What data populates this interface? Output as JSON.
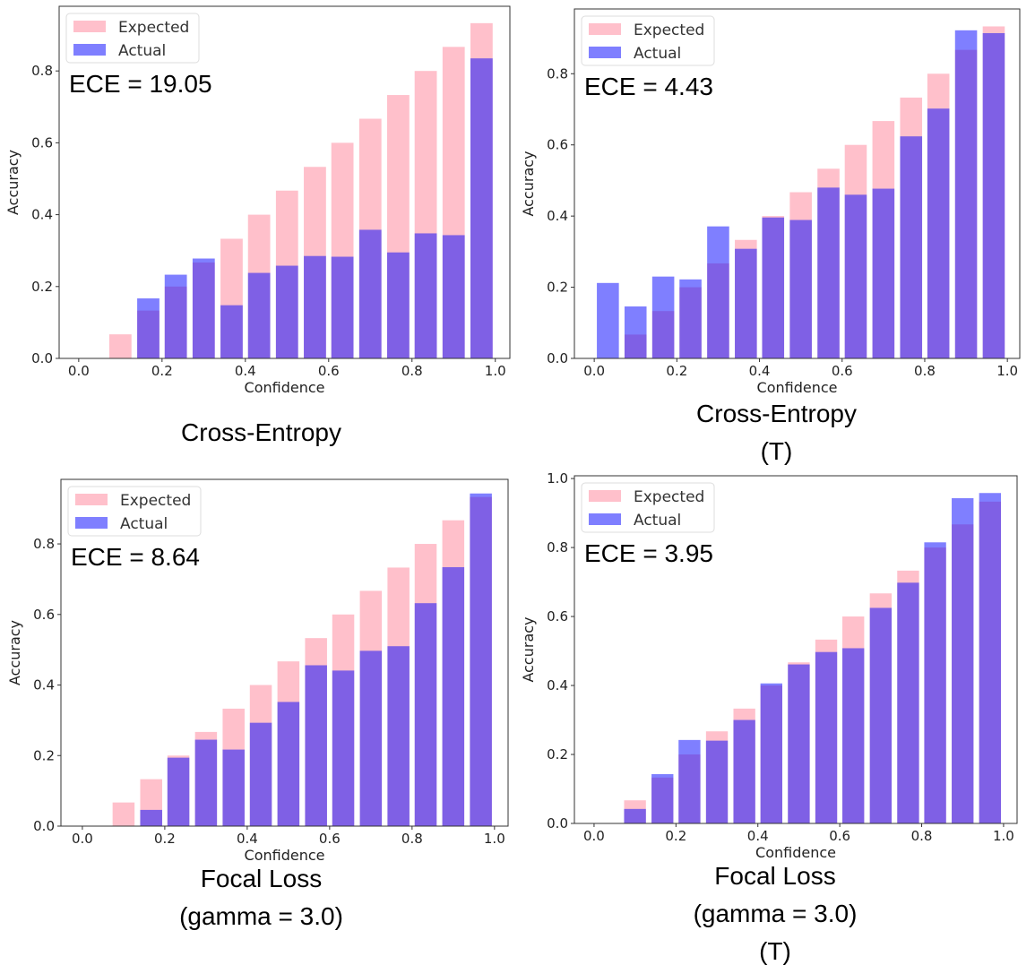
{
  "colors": {
    "expected": "#ffc0cb",
    "actual": "#0000ff",
    "actual_alpha": 0.5
  },
  "chart_data": [
    {
      "type": "bar",
      "caption": [
        "Cross-Entropy"
      ],
      "ece_label": "ECE = 19.05",
      "xlabel": "Confidence",
      "ylabel": "Accuracy",
      "legend": [
        "Expected",
        "Actual"
      ],
      "legend_placement": "top-left",
      "xlim": [
        -0.047,
        1.035
      ],
      "ylim": [
        0,
        0.98
      ],
      "xticks": [
        "0.0",
        "0.2",
        "0.4",
        "0.6",
        "0.8",
        "1.0"
      ],
      "yticks": [
        "0.0",
        "0.2",
        "0.4",
        "0.6",
        "0.8"
      ],
      "bin_centers": [
        0.033,
        0.1,
        0.167,
        0.233,
        0.3,
        0.367,
        0.433,
        0.5,
        0.567,
        0.633,
        0.7,
        0.767,
        0.833,
        0.9,
        0.967
      ],
      "series": [
        {
          "name": "Expected",
          "values": [
            0,
            0.067,
            0.133,
            0.2,
            0.267,
            0.333,
            0.4,
            0.467,
            0.533,
            0.6,
            0.667,
            0.733,
            0.8,
            0.867,
            0.933
          ]
        },
        {
          "name": "Actual",
          "values": [
            0,
            0,
            0.167,
            0.233,
            0.278,
            0.148,
            0.238,
            0.258,
            0.285,
            0.283,
            0.358,
            0.295,
            0.348,
            0.343,
            0.835
          ]
        }
      ]
    },
    {
      "type": "bar",
      "caption": [
        "Cross-Entropy",
        "(T)"
      ],
      "ece_label": "ECE = 4.43",
      "xlabel": "Confidence",
      "ylabel": "Accuracy",
      "legend": [
        "Expected",
        "Actual"
      ],
      "legend_placement": "top-left",
      "xlim": [
        -0.048,
        1.03
      ],
      "ylim": [
        0,
        0.982
      ],
      "xticks": [
        "0.0",
        "0.2",
        "0.4",
        "0.6",
        "0.8",
        "1.0"
      ],
      "yticks": [
        "0.0",
        "0.2",
        "0.4",
        "0.6",
        "0.8"
      ],
      "bin_centers": [
        0.033,
        0.1,
        0.167,
        0.233,
        0.3,
        0.367,
        0.433,
        0.5,
        0.567,
        0.633,
        0.7,
        0.767,
        0.833,
        0.9,
        0.967
      ],
      "series": [
        {
          "name": "Expected",
          "values": [
            0,
            0.067,
            0.133,
            0.2,
            0.267,
            0.333,
            0.4,
            0.467,
            0.533,
            0.6,
            0.667,
            0.733,
            0.8,
            0.867,
            0.933
          ]
        },
        {
          "name": "Actual",
          "values": [
            0.212,
            0.146,
            0.23,
            0.222,
            0.371,
            0.308,
            0.396,
            0.389,
            0.48,
            0.46,
            0.477,
            0.624,
            0.702,
            0.922,
            0.914
          ]
        }
      ]
    },
    {
      "type": "bar",
      "caption": [
        "Focal Loss",
        "(gamma = 3.0)"
      ],
      "ece_label": "ECE = 8.64",
      "xlabel": "Confidence",
      "ylabel": "Accuracy",
      "legend": [
        "Expected",
        "Actual"
      ],
      "legend_placement": "top-left",
      "xlim": [
        -0.052,
        1.033
      ],
      "ylim": [
        0,
        0.983
      ],
      "xticks": [
        "0.0",
        "0.2",
        "0.4",
        "0.6",
        "0.8",
        "1.0"
      ],
      "yticks": [
        "0.0",
        "0.2",
        "0.4",
        "0.6",
        "0.8"
      ],
      "bin_centers": [
        0.033,
        0.1,
        0.167,
        0.233,
        0.3,
        0.367,
        0.433,
        0.5,
        0.567,
        0.633,
        0.7,
        0.767,
        0.833,
        0.9,
        0.967
      ],
      "series": [
        {
          "name": "Expected",
          "values": [
            0,
            0.067,
            0.133,
            0.2,
            0.267,
            0.333,
            0.4,
            0.467,
            0.533,
            0.6,
            0.667,
            0.733,
            0.8,
            0.867,
            0.933
          ]
        },
        {
          "name": "Actual",
          "values": [
            0,
            0,
            0.046,
            0.194,
            0.245,
            0.217,
            0.293,
            0.352,
            0.456,
            0.441,
            0.497,
            0.51,
            0.632,
            0.734,
            0.943
          ]
        }
      ]
    },
    {
      "type": "bar",
      "caption": [
        "Focal Loss",
        "(gamma = 3.0)",
        "(T)"
      ],
      "ece_label": "ECE = 3.95",
      "xlabel": "Confidence",
      "ylabel": "Accuracy",
      "legend": [
        "Expected",
        "Actual"
      ],
      "legend_placement": "top-left",
      "xlim": [
        -0.048,
        1.033
      ],
      "ylim": [
        0,
        1.008
      ],
      "xticks": [
        "0.0",
        "0.2",
        "0.4",
        "0.6",
        "0.8",
        "1.0"
      ],
      "yticks": [
        "0.0",
        "0.2",
        "0.4",
        "0.6",
        "0.8",
        "1.0"
      ],
      "bin_centers": [
        0.033,
        0.1,
        0.167,
        0.233,
        0.3,
        0.367,
        0.433,
        0.5,
        0.567,
        0.633,
        0.7,
        0.767,
        0.833,
        0.9,
        0.967
      ],
      "series": [
        {
          "name": "Expected",
          "values": [
            0,
            0.067,
            0.133,
            0.2,
            0.267,
            0.333,
            0.4,
            0.467,
            0.533,
            0.6,
            0.667,
            0.733,
            0.8,
            0.867,
            0.933
          ]
        },
        {
          "name": "Actual",
          "values": [
            0,
            0.042,
            0.143,
            0.242,
            0.24,
            0.3,
            0.406,
            0.461,
            0.497,
            0.508,
            0.625,
            0.698,
            0.815,
            0.943,
            0.958
          ]
        }
      ]
    }
  ]
}
